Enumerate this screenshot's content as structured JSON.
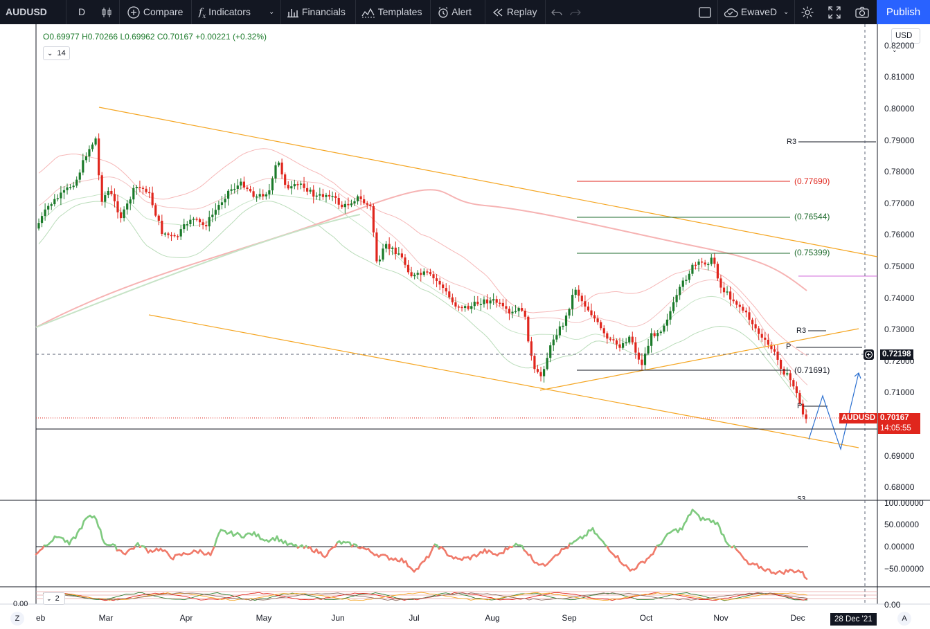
{
  "toolbar": {
    "symbol": "AUDUSD",
    "interval": "D",
    "compare": "Compare",
    "indicators": "Indicators",
    "financials": "Financials",
    "templates": "Templates",
    "alert": "Alert",
    "replay": "Replay",
    "account": "EwaveD",
    "publish": "Publish"
  },
  "legend": {
    "open": "O0.69977",
    "high": "H0.70266",
    "low": "L0.69962",
    "close": "C0.70167",
    "change": "+0.00221 (+0.32%)",
    "indicator_count": "14",
    "pane2_count": "2"
  },
  "currency": "USD",
  "price_axis": {
    "ticks": [
      "0.82000",
      "0.81000",
      "0.80000",
      "0.79000",
      "0.78000",
      "0.77000",
      "0.76000",
      "0.75000",
      "0.74000",
      "0.73000",
      "0.72000",
      "0.71000",
      "0.69000",
      "0.68000"
    ],
    "crosshair_price": "0.72198",
    "last_price": "0.70167",
    "countdown": "14:05:55",
    "symbol_tag": "AUDUSD"
  },
  "osc_axis": {
    "ticks": [
      "100.00000",
      "50.00000",
      "0.00000",
      "−50.00000"
    ],
    "bottom_tick": "0.00"
  },
  "pane2_left_value": "0.00",
  "time_axis": {
    "labels": [
      "Mar",
      "Apr",
      "May",
      "Jun",
      "Jul",
      "Aug",
      "Sep",
      "Oct",
      "Nov",
      "Dec"
    ],
    "left_partial": "eb",
    "crosshair_date": "28 Dec '21",
    "left_button": "Z",
    "right_button": "A"
  },
  "annotations": {
    "fib": [
      "(0.77690)",
      "(0.76544)",
      "(0.75399)",
      "(0.71691)"
    ],
    "pivots": [
      "R3",
      "R3",
      "P",
      "P",
      "S3"
    ]
  },
  "colors": {
    "up": "#26a69a",
    "up_candle": "#1b7a2a",
    "down": "#e0261d",
    "trend": "#f5a623",
    "fib_red": "#e0261d",
    "fib_green": "#1e6b2c",
    "projection": "#2a6fd0",
    "magenta": "#d06ad8",
    "osc_green": "#7fca7f",
    "osc_red": "#f07a6a"
  },
  "chart_data": {
    "type": "candlestick",
    "symbol": "AUDUSD",
    "interval": "D",
    "ylim": [
      0.675,
      0.825
    ],
    "months": [
      "Mar",
      "Apr",
      "May",
      "Jun",
      "Jul",
      "Aug",
      "Sep",
      "Oct",
      "Nov",
      "Dec"
    ],
    "monthly_close_approx": [
      0.772,
      0.762,
      0.777,
      0.775,
      0.744,
      0.731,
      0.729,
      0.752,
      0.713,
      0.702
    ],
    "trendline_upper": [
      [
        0.801,
        "Mar"
      ],
      [
        0.753,
        "Dec"
      ]
    ],
    "trendline_lower": [
      [
        0.733,
        "Apr"
      ],
      [
        0.691,
        "Dec"
      ]
    ],
    "fib_levels": [
      0.7769,
      0.76544,
      0.75399,
      0.71691
    ],
    "last_close": 0.70167
  }
}
